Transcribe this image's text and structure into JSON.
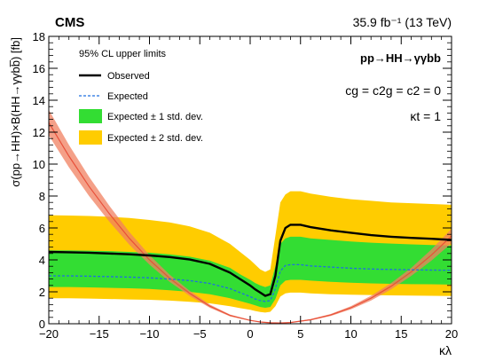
{
  "chart_data": {
    "type": "line",
    "experiment_label": "CMS",
    "luminosity_label": "35.9 fb⁻¹ (13 TeV)",
    "xlabel": "κλ",
    "ylabel": "σ(pp→HH)×B(HH→γγbb̅) [fb]",
    "xlim": [
      -20,
      20
    ],
    "ylim": [
      0,
      18
    ],
    "x_ticks": [
      -20,
      -15,
      -10,
      -5,
      0,
      5,
      10,
      15,
      20
    ],
    "y_ticks": [
      0,
      2,
      4,
      6,
      8,
      10,
      12,
      14,
      16,
      18
    ],
    "grid": false,
    "legend_position": "top-left",
    "legend_title": "95% CL upper limits",
    "process_label": "pp→HH→γγbb",
    "coupling_line_1": "cg = c2g = c2 = 0",
    "coupling_line_2": "κt = 1",
    "x": [
      -20,
      -18,
      -16,
      -14,
      -12,
      -10,
      -8,
      -6,
      -4,
      -2,
      -1,
      0,
      0.5,
      1,
      1.5,
      2,
      2.5,
      3,
      3.5,
      4,
      5,
      6,
      8,
      10,
      12,
      14,
      16,
      18,
      20
    ],
    "series": [
      {
        "name": "Observed",
        "color": "#000000",
        "style": "solid",
        "values": [
          4.5,
          4.48,
          4.45,
          4.4,
          4.35,
          4.28,
          4.18,
          4.02,
          3.75,
          3.2,
          2.8,
          2.4,
          2.15,
          1.95,
          1.75,
          1.85,
          3.0,
          5.2,
          6.0,
          6.2,
          6.2,
          6.05,
          5.85,
          5.7,
          5.55,
          5.45,
          5.38,
          5.32,
          5.25
        ]
      },
      {
        "name": "Expected",
        "color": "#1f6fe0",
        "style": "dashed",
        "values": [
          3.0,
          3.0,
          2.98,
          2.95,
          2.92,
          2.88,
          2.8,
          2.7,
          2.52,
          2.2,
          1.95,
          1.7,
          1.55,
          1.45,
          1.4,
          1.45,
          2.2,
          3.3,
          3.65,
          3.7,
          3.7,
          3.62,
          3.55,
          3.48,
          3.43,
          3.4,
          3.38,
          3.36,
          3.35
        ]
      },
      {
        "name": "Expected ± 1 std. dev.",
        "color": "#33dd33",
        "type": "band",
        "lower": [
          2.3,
          2.3,
          2.28,
          2.25,
          2.22,
          2.18,
          2.1,
          2.0,
          1.85,
          1.6,
          1.42,
          1.25,
          1.15,
          1.05,
          1.0,
          1.05,
          1.55,
          2.4,
          2.7,
          2.75,
          2.75,
          2.7,
          2.62,
          2.57,
          2.53,
          2.5,
          2.48,
          2.47,
          2.45
        ],
        "upper": [
          4.6,
          4.6,
          4.58,
          4.55,
          4.5,
          4.45,
          4.35,
          4.2,
          3.95,
          3.5,
          3.1,
          2.75,
          2.55,
          2.4,
          2.3,
          2.4,
          3.6,
          5.0,
          5.35,
          5.45,
          5.45,
          5.35,
          5.25,
          5.15,
          5.08,
          5.02,
          4.97,
          4.93,
          4.9
        ]
      },
      {
        "name": "Expected ± 2 std. dev.",
        "color": "#ffcc00",
        "type": "band",
        "lower": [
          1.6,
          1.6,
          1.58,
          1.55,
          1.52,
          1.5,
          1.45,
          1.38,
          1.28,
          1.1,
          0.98,
          0.88,
          0.8,
          0.74,
          0.7,
          0.75,
          1.1,
          1.7,
          1.9,
          1.95,
          1.95,
          1.9,
          1.85,
          1.82,
          1.8,
          1.78,
          1.76,
          1.75,
          1.74
        ],
        "upper": [
          6.8,
          6.78,
          6.75,
          6.7,
          6.62,
          6.5,
          6.35,
          6.1,
          5.7,
          5.0,
          4.5,
          4.0,
          3.7,
          3.4,
          3.25,
          3.4,
          5.5,
          7.6,
          8.1,
          8.3,
          8.3,
          8.15,
          7.95,
          7.8,
          7.7,
          7.6,
          7.55,
          7.5,
          7.45
        ]
      }
    ],
    "theory": {
      "color": "#e8503a",
      "band_color": "#f08060",
      "x": [
        -20,
        -18,
        -16,
        -14,
        -12,
        -10,
        -8,
        -6,
        -4,
        -2,
        0,
        1,
        2,
        3,
        4,
        6,
        8,
        10,
        12,
        14,
        16,
        18,
        20
      ],
      "central": [
        12.6,
        10.5,
        8.6,
        6.9,
        5.35,
        4.0,
        2.85,
        1.9,
        1.1,
        0.52,
        0.21,
        0.11,
        0.06,
        0.05,
        0.08,
        0.25,
        0.55,
        1.0,
        1.6,
        2.35,
        3.25,
        4.3,
        5.5
      ],
      "lower": [
        11.8,
        9.8,
        8.0,
        6.4,
        4.95,
        3.7,
        2.62,
        1.74,
        1.0,
        0.46,
        0.18,
        0.09,
        0.05,
        0.04,
        0.06,
        0.21,
        0.49,
        0.9,
        1.45,
        2.15,
        3.0,
        3.95,
        5.05
      ],
      "upper": [
        13.4,
        11.2,
        9.2,
        7.4,
        5.75,
        4.3,
        3.08,
        2.06,
        1.2,
        0.58,
        0.24,
        0.13,
        0.07,
        0.06,
        0.1,
        0.29,
        0.61,
        1.1,
        1.75,
        2.55,
        3.5,
        4.65,
        5.95
      ]
    }
  }
}
